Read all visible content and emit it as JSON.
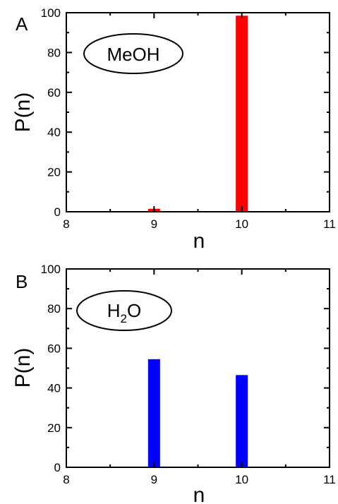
{
  "chart_data": [
    {
      "type": "bar",
      "panel_label": "A",
      "annotation": "MeOH",
      "xlabel": "n",
      "ylabel": "P(n)",
      "xlim": [
        8,
        11
      ],
      "ylim": [
        0,
        100
      ],
      "xticks": [
        8,
        9,
        10,
        11
      ],
      "yticks": [
        0,
        20,
        40,
        60,
        80,
        100
      ],
      "x": [
        9,
        10
      ],
      "values": [
        1.5,
        98.5
      ],
      "color": "#ff0000",
      "grid": false
    },
    {
      "type": "bar",
      "panel_label": "B",
      "annotation": "H",
      "annotation_sub": "2",
      "annotation_tail": "O",
      "xlabel": "n",
      "ylabel": "P(n)",
      "xlim": [
        8,
        11
      ],
      "ylim": [
        0,
        100
      ],
      "xticks": [
        8,
        9,
        10,
        11
      ],
      "yticks": [
        0,
        20,
        40,
        60,
        80,
        100
      ],
      "x": [
        9,
        10
      ],
      "values": [
        54.5,
        46.5
      ],
      "color": "#0000ff",
      "grid": false
    }
  ]
}
